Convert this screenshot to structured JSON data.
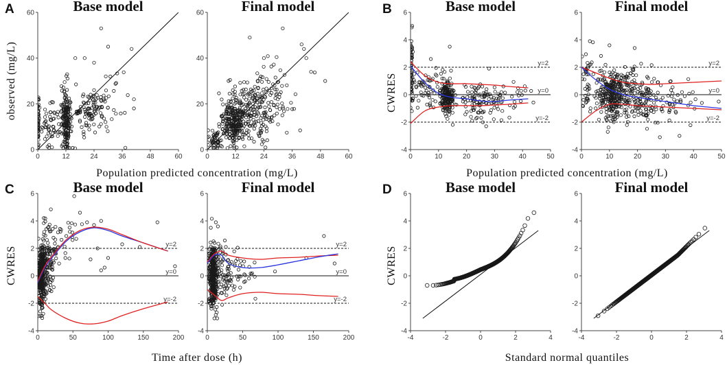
{
  "figure": {
    "colors": {
      "points": "#1a1a1a",
      "red": "#e02020",
      "blue": "#2a35e0",
      "ref": "#111111"
    },
    "shared_labels": {
      "A_x": "Population predicted concentration (mg/L)",
      "B_x": "Population predicted concentration (mg/L)",
      "C_x": "Time after dose (h)",
      "D_x": "Standard normal quantiles",
      "A_y": "observed (mg/L)",
      "B_y": "CWRES",
      "C_y": "CWRES",
      "D_y": "CWRES"
    }
  },
  "chart_data": [
    {
      "panel": "A",
      "title": "Base model",
      "type": "scatter",
      "xlim": [
        0,
        60
      ],
      "ylim": [
        0,
        60
      ],
      "xticks": [
        "0",
        "12",
        "24",
        "36",
        "48",
        "60"
      ],
      "yticks": [
        "0",
        "20",
        "40",
        "60"
      ],
      "identity_line": true,
      "clusters": [
        {
          "x": 0,
          "y": 13,
          "sx": 0.3,
          "sy": 6,
          "n": 45,
          "xmin": 0
        },
        {
          "x": 12,
          "y": 12,
          "sx": 0.9,
          "sy": 7,
          "n": 170,
          "xmin": 0
        },
        {
          "x": 6,
          "y": 12,
          "sx": 3,
          "sy": 5,
          "n": 60,
          "xmin": 0
        },
        {
          "x": 18,
          "y": 15,
          "sx": 3,
          "sy": 6,
          "n": 40,
          "xmin": 0
        },
        {
          "x": 24,
          "y": 18,
          "sx": 4,
          "sy": 5,
          "n": 80,
          "xmin": 0
        },
        {
          "x": 32,
          "y": 22,
          "sx": 3,
          "sy": 8,
          "n": 12,
          "xmin": 0
        }
      ],
      "points": [
        [
          27,
          53
        ],
        [
          40,
          44
        ],
        [
          20,
          40
        ],
        [
          24,
          38
        ],
        [
          41,
          18
        ],
        [
          41,
          22
        ],
        [
          16,
          40
        ],
        [
          30,
          45
        ],
        [
          29,
          32
        ]
      ]
    },
    {
      "panel": "A",
      "title": "Final model",
      "type": "scatter",
      "xlim": [
        0,
        60
      ],
      "ylim": [
        0,
        60
      ],
      "xticks": [
        "0",
        "12",
        "24",
        "36",
        "48",
        "60"
      ],
      "yticks": [
        "0",
        "20",
        "40",
        "60"
      ],
      "identity_line": true,
      "clusters": [
        {
          "x": 11,
          "y": 12,
          "sx": 2.5,
          "sy": 5,
          "n": 220,
          "xmin": 0
        },
        {
          "x": 18,
          "y": 17,
          "sx": 5,
          "sy": 7,
          "n": 190,
          "xmin": 0
        },
        {
          "x": 3,
          "y": 4,
          "sx": 1.5,
          "sy": 3,
          "n": 50,
          "xmin": 0
        },
        {
          "x": 28,
          "y": 25,
          "sx": 5,
          "sy": 7,
          "n": 60,
          "xmin": 0
        }
      ],
      "points": [
        [
          32,
          53
        ],
        [
          18,
          49
        ],
        [
          40,
          46
        ],
        [
          41,
          44
        ],
        [
          42,
          40
        ],
        [
          50,
          30
        ],
        [
          44,
          34
        ],
        [
          24,
          40
        ],
        [
          9,
          30
        ]
      ]
    },
    {
      "panel": "B",
      "title": "Base model",
      "type": "scatter",
      "xlim": [
        0,
        50
      ],
      "ylim": [
        -4,
        6
      ],
      "xticks": [
        "0",
        "10",
        "20",
        "30",
        "40",
        "50"
      ],
      "yticks": [
        "-4",
        "-2",
        "0",
        "2",
        "4",
        "6"
      ],
      "ref_lines": [
        {
          "y": 2,
          "label": "y=2",
          "dashed": true
        },
        {
          "y": 0,
          "label": "y=0",
          "dashed": false
        },
        {
          "y": -2,
          "label": "y=-2",
          "dashed": true
        }
      ],
      "clusters": [
        {
          "x": 0.3,
          "y": 1.8,
          "sx": 0.25,
          "sy": 1.3,
          "n": 55,
          "xmin": 0
        },
        {
          "x": 13,
          "y": -0.2,
          "sx": 1.2,
          "sy": 0.6,
          "n": 200,
          "xmin": 0
        },
        {
          "x": 6,
          "y": 0.6,
          "sx": 3,
          "sy": 0.8,
          "n": 70,
          "xmin": 0
        },
        {
          "x": 25,
          "y": -0.4,
          "sx": 4,
          "sy": 0.6,
          "n": 110,
          "xmin": 0
        },
        {
          "x": 36,
          "y": -0.3,
          "sx": 4,
          "sy": 0.6,
          "n": 20,
          "xmin": 0
        }
      ],
      "points": [
        [
          14,
          3.5
        ],
        [
          28,
          1.9
        ],
        [
          41,
          0.3
        ],
        [
          27,
          -2.3
        ],
        [
          22,
          -1.9
        ]
      ],
      "curves": [
        {
          "color": "red",
          "x": [
            0,
            5,
            10,
            15,
            20,
            25,
            30,
            35,
            42
          ],
          "y": [
            2.4,
            1.4,
            0.9,
            0.8,
            0.8,
            0.75,
            0.7,
            0.6,
            0.5
          ]
        },
        {
          "color": "blue",
          "x": [
            0,
            5,
            10,
            15,
            20,
            25,
            30,
            35,
            42
          ],
          "y": [
            2.1,
            0.9,
            0.1,
            -0.2,
            -0.3,
            -0.45,
            -0.5,
            -0.4,
            -0.3
          ]
        },
        {
          "color": "red",
          "x": [
            0,
            5,
            10,
            15,
            20,
            25,
            30,
            35,
            42
          ],
          "y": [
            -2.1,
            -1.2,
            -0.9,
            -0.8,
            -0.8,
            -0.8,
            -0.75,
            -0.7,
            -0.6
          ]
        }
      ]
    },
    {
      "panel": "B",
      "title": "Final model",
      "type": "scatter",
      "xlim": [
        0,
        50
      ],
      "ylim": [
        -4,
        6
      ],
      "xticks": [
        "0",
        "10",
        "20",
        "30",
        "40",
        "50"
      ],
      "yticks": [
        "-4",
        "-2",
        "0",
        "2",
        "4",
        "6"
      ],
      "ref_lines": [
        {
          "y": 2,
          "label": "y=2",
          "dashed": true
        },
        {
          "y": 0,
          "label": "y=0",
          "dashed": false
        },
        {
          "y": -2,
          "label": "y=-2",
          "dashed": true
        }
      ],
      "clusters": [
        {
          "x": 11,
          "y": 0.0,
          "sx": 3,
          "sy": 0.9,
          "n": 280,
          "xmin": 0
        },
        {
          "x": 20,
          "y": -0.1,
          "sx": 5,
          "sy": 0.9,
          "n": 170,
          "xmin": 0
        },
        {
          "x": 2,
          "y": 0.8,
          "sx": 1.5,
          "sy": 1.2,
          "n": 40,
          "xmin": 0
        },
        {
          "x": 32,
          "y": -0.5,
          "sx": 6,
          "sy": 0.9,
          "n": 40,
          "xmin": 0
        }
      ],
      "points": [
        [
          3,
          3.9
        ],
        [
          10,
          3.6
        ],
        [
          19,
          3.4
        ],
        [
          43,
          -0.6
        ],
        [
          49,
          -0.5
        ],
        [
          28,
          -3.1
        ],
        [
          35,
          -3.0
        ]
      ],
      "curves": [
        {
          "color": "red",
          "x": [
            0,
            5,
            10,
            15,
            20,
            25,
            30,
            35,
            40,
            45,
            50
          ],
          "y": [
            2.0,
            1.6,
            1.2,
            0.9,
            0.8,
            0.75,
            0.8,
            0.85,
            0.9,
            0.95,
            1.0
          ]
        },
        {
          "color": "blue",
          "x": [
            0,
            5,
            10,
            15,
            20,
            25,
            30,
            35,
            40,
            45,
            50
          ],
          "y": [
            2.0,
            1.1,
            0.4,
            0.0,
            -0.2,
            -0.35,
            -0.5,
            -0.65,
            -0.8,
            -0.9,
            -1.0
          ]
        },
        {
          "color": "red",
          "x": [
            0,
            5,
            10,
            15,
            20,
            25,
            30,
            35,
            40,
            45,
            50
          ],
          "y": [
            -2.0,
            -1.2,
            -0.7,
            -0.7,
            -0.8,
            -0.85,
            -0.9,
            -0.95,
            -1.0,
            -1.05,
            -1.1
          ]
        }
      ]
    },
    {
      "panel": "C",
      "title": "Base model",
      "type": "scatter",
      "xlim": [
        0,
        200
      ],
      "ylim": [
        -4,
        6
      ],
      "xticks": [
        "0",
        "50",
        "100",
        "150",
        "200"
      ],
      "yticks": [
        "-4",
        "-2",
        "0",
        "2",
        "4",
        "6"
      ],
      "ref_lines": [
        {
          "y": 2,
          "label": "y=2",
          "dashed": true
        },
        {
          "y": 0,
          "label": "y=0",
          "dashed": false
        },
        {
          "y": -2,
          "label": "y=-2",
          "dashed": true
        }
      ],
      "clusters": [
        {
          "x": 6,
          "y": 0.0,
          "sx": 3,
          "sy": 1.1,
          "n": 330,
          "xmin": 1
        },
        {
          "x": 15,
          "y": 1.2,
          "sx": 5,
          "sy": 1.2,
          "n": 90,
          "xmin": 2
        },
        {
          "x": 35,
          "y": 2.5,
          "sx": 12,
          "sy": 1.0,
          "n": 35,
          "xmin": 5
        }
      ],
      "points": [
        [
          60,
          4.6
        ],
        [
          70,
          3.9
        ],
        [
          80,
          3.7
        ],
        [
          90,
          4.0
        ],
        [
          95,
          0.6
        ],
        [
          100,
          1.3
        ],
        [
          85,
          2.0
        ],
        [
          75,
          1.2
        ],
        [
          90,
          0.4
        ],
        [
          170,
          3.9
        ],
        [
          195,
          0.7
        ],
        [
          145,
          2.1
        ],
        [
          120,
          2.3
        ]
      ],
      "curves": [
        {
          "color": "blue",
          "x": [
            0,
            10,
            20,
            40,
            60,
            80,
            100,
            120,
            150,
            185
          ],
          "y": [
            -0.5,
            0.6,
            1.3,
            2.5,
            3.2,
            3.5,
            3.3,
            2.9,
            2.4,
            1.8
          ]
        },
        {
          "color": "red",
          "x": [
            0,
            10,
            20,
            40,
            60,
            80,
            100,
            120,
            150,
            185
          ],
          "y": [
            -0.4,
            0.7,
            1.4,
            2.6,
            3.3,
            3.55,
            3.4,
            3.0,
            2.4,
            1.8
          ]
        },
        {
          "color": "red",
          "x": [
            0,
            10,
            20,
            40,
            60,
            80,
            100,
            120,
            150,
            185
          ],
          "y": [
            -1.5,
            -2.0,
            -2.5,
            -3.1,
            -3.45,
            -3.5,
            -3.3,
            -2.9,
            -2.4,
            -1.9
          ]
        }
      ]
    },
    {
      "panel": "C",
      "title": "Final model",
      "type": "scatter",
      "xlim": [
        0,
        200
      ],
      "ylim": [
        -4,
        6
      ],
      "xticks": [
        "0",
        "50",
        "100",
        "150",
        "200"
      ],
      "yticks": [
        "-4",
        "-2",
        "0",
        "2",
        "4",
        "6"
      ],
      "ref_lines": [
        {
          "y": 2,
          "label": "y=2",
          "dashed": true
        },
        {
          "y": 0,
          "label": "y=0",
          "dashed": false
        },
        {
          "y": -2,
          "label": "y=-2",
          "dashed": true
        }
      ],
      "clusters": [
        {
          "x": 8,
          "y": 0.0,
          "sx": 3,
          "sy": 1.1,
          "n": 360,
          "xmin": 1
        },
        {
          "x": 25,
          "y": 0.3,
          "sx": 8,
          "sy": 1.0,
          "n": 80,
          "xmin": 2
        },
        {
          "x": 55,
          "y": 0.4,
          "sx": 15,
          "sy": 0.9,
          "n": 25,
          "xmin": 10
        }
      ],
      "points": [
        [
          12,
          3.9
        ],
        [
          15,
          3.6
        ],
        [
          165,
          2.9
        ],
        [
          140,
          1.3
        ],
        [
          180,
          0.9
        ],
        [
          10,
          -3.1
        ],
        [
          14,
          -3.1
        ]
      ],
      "curves": [
        {
          "color": "red",
          "x": [
            0,
            10,
            20,
            30,
            50,
            75,
            100,
            130,
            160,
            185
          ],
          "y": [
            1.0,
            1.6,
            1.8,
            1.5,
            1.3,
            1.2,
            1.3,
            1.35,
            1.45,
            1.5
          ]
        },
        {
          "color": "blue",
          "x": [
            0,
            10,
            20,
            30,
            50,
            75,
            100,
            130,
            160,
            185
          ],
          "y": [
            0.9,
            1.5,
            1.5,
            0.9,
            0.6,
            0.6,
            0.8,
            1.1,
            1.4,
            1.6
          ]
        },
        {
          "color": "red",
          "x": [
            0,
            10,
            20,
            30,
            50,
            75,
            100,
            130,
            160,
            185
          ],
          "y": [
            -1.0,
            -1.4,
            -1.8,
            -1.6,
            -1.3,
            -1.2,
            -1.3,
            -1.35,
            -1.45,
            -1.5
          ]
        }
      ]
    },
    {
      "panel": "D",
      "title": "Base model",
      "type": "qq",
      "xlim": [
        -4,
        4
      ],
      "ylim": [
        -4,
        6
      ],
      "xticks": [
        "-4",
        "-2",
        "0",
        "2",
        "4"
      ],
      "yticks": [
        "-4",
        "-2",
        "0",
        "2",
        "4",
        "6"
      ],
      "n": 440,
      "shape": "base",
      "ref_line": {
        "x": [
          -3.3,
          3.3
        ],
        "y": [
          -3.1,
          3.3
        ]
      }
    },
    {
      "panel": "D",
      "title": "Final model",
      "type": "qq",
      "xlim": [
        -4,
        4
      ],
      "ylim": [
        -4,
        6
      ],
      "xticks": [
        "-4",
        "-2",
        "0",
        "2",
        "4"
      ],
      "yticks": [
        "-4",
        "-2",
        "0",
        "2",
        "4",
        "6"
      ],
      "n": 440,
      "shape": "final",
      "ref_line": {
        "x": [
          -3.3,
          3.3
        ],
        "y": [
          -3.1,
          3.3
        ]
      }
    }
  ]
}
